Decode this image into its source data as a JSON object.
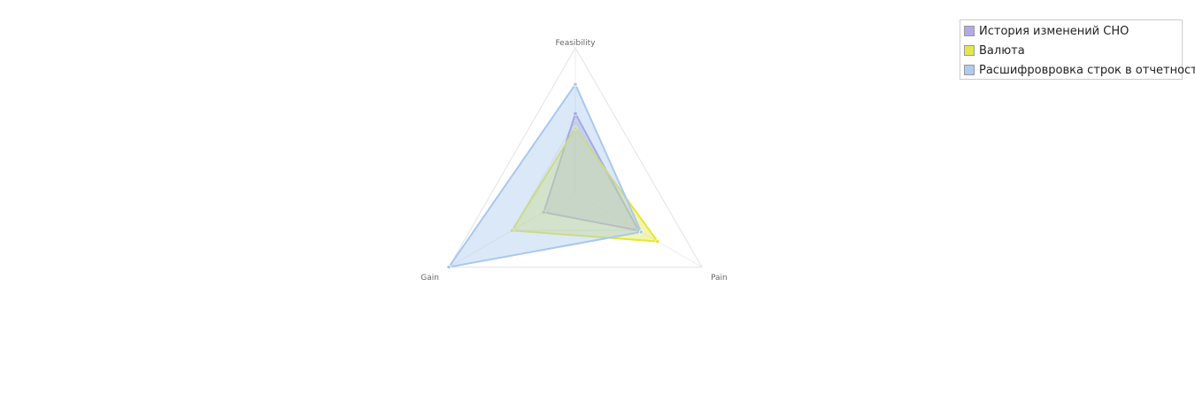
{
  "chart_data": {
    "type": "radar",
    "axes": [
      "Feasibility",
      "Pain",
      "Gain"
    ],
    "range": [
      0,
      10
    ],
    "grid_levels": 2,
    "legend_position": "top-right",
    "series": [
      {
        "name": "История изменений СНО",
        "values": [
          5.5,
          5.0,
          2.5
        ],
        "color": "#9b8ed8",
        "fill": "#b4a9e3"
      },
      {
        "name": "Валюта",
        "values": [
          4.5,
          6.5,
          5.0
        ],
        "color": "#e6e635",
        "fill": "#e3e84a"
      },
      {
        "name": "Расшифровровка строк в отчетности",
        "values": [
          7.5,
          5.2,
          10.0
        ],
        "color": "#a9c8ee",
        "fill": "#aecbf0"
      }
    ]
  }
}
